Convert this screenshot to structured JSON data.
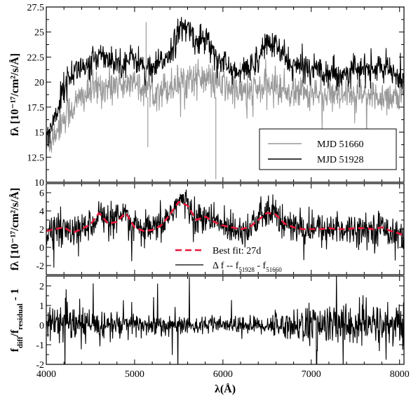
{
  "chart_data": [
    {
      "type": "line",
      "panel": "top",
      "ylabel": "fλ [10⁻¹⁷/cm²/s/Å]",
      "xlim": [
        4000,
        8050
      ],
      "ylim": [
        10,
        27.5
      ],
      "yticks": [
        10,
        12.5,
        15,
        17.5,
        20,
        22.5,
        25,
        27.5
      ],
      "ytick_labels": [
        "10",
        "12.5",
        "15",
        "17.5",
        "20",
        "22.5",
        "25",
        "27.5"
      ],
      "legend_position": "lower-right",
      "series": [
        {
          "name": "MJD 51660",
          "color": "#999999",
          "x": [
            4000,
            4100,
            4200,
            4300,
            4400,
            4500,
            4600,
            4700,
            4800,
            4900,
            5000,
            5100,
            5200,
            5300,
            5400,
            5500,
            5600,
            5700,
            5800,
            5900,
            6000,
            6100,
            6200,
            6300,
            6400,
            6500,
            6600,
            6700,
            6800,
            6900,
            7000,
            7100,
            7200,
            7300,
            7400,
            7500,
            7600,
            7700,
            7800,
            7900,
            8000,
            8050
          ],
          "values": [
            13.5,
            15,
            16.5,
            17.5,
            18.5,
            19,
            19.5,
            19.5,
            20,
            19.8,
            19.8,
            19.5,
            19.2,
            19.3,
            19.5,
            20,
            20.4,
            20.5,
            20.3,
            20,
            19.6,
            19.3,
            19,
            19,
            19.2,
            19.6,
            19.5,
            19.2,
            19,
            19,
            19,
            18.8,
            18.6,
            18.5,
            18.5,
            18.6,
            18.6,
            18.5,
            18.6,
            18.6,
            18.5,
            18.4
          ],
          "noise": 1.0
        },
        {
          "name": "MJD 51928",
          "color": "#000000",
          "x": [
            4000,
            4100,
            4200,
            4300,
            4400,
            4500,
            4600,
            4700,
            4800,
            4900,
            5000,
            5100,
            5200,
            5300,
            5400,
            5500,
            5600,
            5700,
            5800,
            5900,
            6000,
            6100,
            6200,
            6300,
            6400,
            6500,
            6600,
            6700,
            6800,
            6900,
            7000,
            7100,
            7200,
            7300,
            7400,
            7500,
            7600,
            7700,
            7800,
            7900,
            8000,
            8050
          ],
          "values": [
            14.5,
            16.5,
            19.5,
            21,
            21.5,
            21.5,
            23,
            22.5,
            22,
            22,
            22.5,
            21.5,
            21,
            22,
            23,
            25,
            25.5,
            24,
            24.5,
            23,
            22,
            21,
            20.8,
            21.5,
            22.5,
            24,
            23.5,
            22.5,
            21.5,
            21.5,
            21.5,
            21.3,
            21,
            20.8,
            21,
            21.2,
            21.2,
            21.3,
            21.5,
            21,
            20.5,
            20.3
          ],
          "noise": 0.8
        }
      ]
    },
    {
      "type": "line",
      "panel": "middle",
      "ylabel": "fλ [10⁻¹⁷/cm²/s/Å]",
      "xlim": [
        4000,
        8050
      ],
      "ylim": [
        -3,
        7
      ],
      "yticks": [
        -2,
        0,
        2,
        4,
        6
      ],
      "ytick_labels": [
        "-2",
        "0",
        "2",
        "4",
        "6"
      ],
      "legend_position": "bottom-center",
      "series": [
        {
          "name": "Best fit: 27d",
          "color": "#e8173a",
          "dashed": true,
          "x": [
            4000,
            4100,
            4200,
            4300,
            4400,
            4500,
            4600,
            4700,
            4800,
            4900,
            5000,
            5100,
            5200,
            5300,
            5400,
            5500,
            5600,
            5700,
            5800,
            5900,
            6000,
            6100,
            6200,
            6300,
            6400,
            6500,
            6600,
            6700,
            6800,
            6900,
            7000,
            7100,
            7200,
            7300,
            7400,
            7500,
            7600,
            7700,
            7800,
            7900,
            8000,
            8050
          ],
          "values": [
            1.8,
            2.0,
            2.2,
            1.6,
            2.0,
            2.5,
            3.8,
            2.6,
            2.8,
            3.8,
            2.2,
            1.8,
            1.9,
            2.4,
            3.6,
            5.0,
            4.6,
            3.0,
            3.4,
            2.8,
            2.4,
            2.2,
            2.0,
            2.2,
            3.0,
            3.8,
            3.6,
            2.6,
            2.2,
            2.0,
            2.0,
            2.0,
            2.1,
            2.0,
            2.0,
            2.1,
            2.1,
            2.0,
            2.2,
            1.8,
            1.5,
            1.3
          ]
        },
        {
          "name": "Δ f -- f",
          "name_sub1": "51928",
          "name_sep": " - f",
          "name_sub2": "51660",
          "color": "#000000",
          "x": [
            4000,
            4100,
            4200,
            4300,
            4400,
            4500,
            4600,
            4700,
            4800,
            4900,
            5000,
            5100,
            5200,
            5300,
            5400,
            5500,
            5600,
            5700,
            5800,
            5900,
            6000,
            6100,
            6200,
            6300,
            6400,
            6500,
            6600,
            6700,
            6800,
            6900,
            7000,
            7100,
            7200,
            7300,
            7400,
            7500,
            7600,
            7700,
            7800,
            7900,
            8000,
            8050
          ],
          "values": [
            1.5,
            2.0,
            2.2,
            1.5,
            2.0,
            2.5,
            3.8,
            2.6,
            2.8,
            3.8,
            2.2,
            1.8,
            1.9,
            2.4,
            3.6,
            5.2,
            4.6,
            3.0,
            3.4,
            2.8,
            2.4,
            2.2,
            2.0,
            2.2,
            3.0,
            3.8,
            3.6,
            2.6,
            2.2,
            2.0,
            2.0,
            2.0,
            2.1,
            2.0,
            2.0,
            2.1,
            2.1,
            2.0,
            2.2,
            1.8,
            1.5,
            1.3
          ],
          "noise": 1.0
        }
      ]
    },
    {
      "type": "line",
      "panel": "bottom",
      "ylabel": "f_diff/f_residual - 1",
      "ylabel_parts": {
        "pre": "f",
        "sub1": "diff",
        "mid": "/f",
        "sub2": "residual",
        "post": " - 1"
      },
      "xlabel": "λ(Å)",
      "xlim": [
        4000,
        8050
      ],
      "ylim": [
        -2,
        2.5
      ],
      "yticks": [
        -2,
        -1,
        0,
        1,
        2
      ],
      "ytick_labels": [
        "-2",
        "-1",
        "0",
        "1",
        "2"
      ],
      "xticks": [
        4000,
        5000,
        6000,
        7000,
        8000
      ],
      "xtick_labels": [
        "4000",
        "5000",
        "6000",
        "7000",
        "8000"
      ],
      "series": [
        {
          "name": "",
          "color": "#000000",
          "x": [
            4000,
            4500,
            5000,
            5500,
            6000,
            6500,
            7000,
            7500,
            8000,
            8050
          ],
          "values": [
            0,
            0,
            0,
            0,
            0,
            0,
            0,
            0,
            0,
            0
          ],
          "noise_profile": [
            0.5,
            0.45,
            0.35,
            0.25,
            0.2,
            0.25,
            0.55,
            0.6,
            0.55,
            0.5
          ]
        }
      ]
    }
  ]
}
